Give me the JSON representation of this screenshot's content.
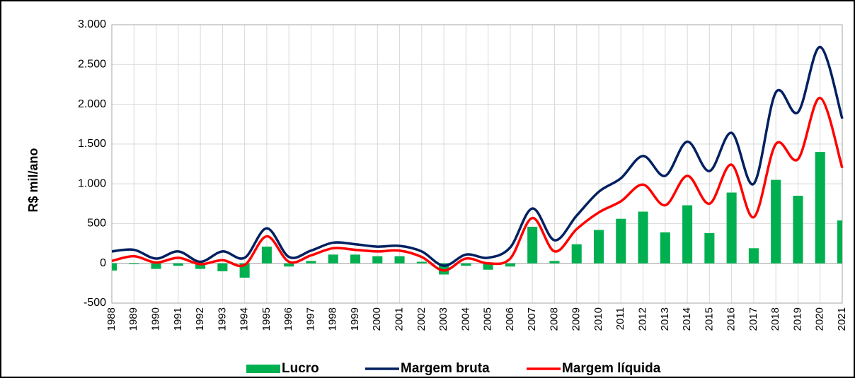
{
  "chart_data": {
    "type": "bar_line",
    "y_label": "R$ mil/ano",
    "categories": [
      "1988",
      "1989",
      "1990",
      "1991",
      "1992",
      "1993",
      "1994",
      "1995",
      "1996",
      "1997",
      "1998",
      "1999",
      "2000",
      "2001",
      "2002",
      "2003",
      "2004",
      "2005",
      "2006",
      "2007",
      "2008",
      "2009",
      "2010",
      "2011",
      "2012",
      "2013",
      "2014",
      "2015",
      "2016",
      "2017",
      "2018",
      "2019",
      "2020",
      "2021"
    ],
    "series": [
      {
        "name": "Lucro",
        "type": "bar",
        "color": "#00b050",
        "values": [
          -90,
          -10,
          -70,
          -30,
          -70,
          -100,
          -180,
          210,
          -40,
          30,
          110,
          110,
          90,
          90,
          20,
          -140,
          -30,
          -80,
          -40,
          460,
          30,
          240,
          420,
          560,
          650,
          390,
          730,
          380,
          890,
          190,
          1050,
          850,
          1400,
          540
        ]
      },
      {
        "name": "Margem bruta",
        "type": "line",
        "color": "#002060",
        "values": [
          150,
          170,
          60,
          150,
          20,
          150,
          70,
          440,
          80,
          160,
          260,
          240,
          210,
          220,
          150,
          -30,
          110,
          70,
          200,
          690,
          290,
          600,
          900,
          1070,
          1350,
          1100,
          1530,
          1160,
          1640,
          1000,
          2150,
          1900,
          2720,
          1820
        ]
      },
      {
        "name": "Margem líquida",
        "type": "line",
        "color": "#ff0000",
        "values": [
          30,
          90,
          10,
          70,
          -10,
          40,
          -20,
          340,
          20,
          100,
          190,
          170,
          150,
          160,
          80,
          -90,
          60,
          0,
          60,
          570,
          150,
          430,
          640,
          780,
          990,
          730,
          1100,
          750,
          1240,
          580,
          1500,
          1310,
          2080,
          1200
        ]
      }
    ],
    "ylim": [
      -500,
      3000
    ],
    "yticks": [
      {
        "value": 3000,
        "label": "3.000"
      },
      {
        "value": 2500,
        "label": "2.500"
      },
      {
        "value": 2000,
        "label": "2.000"
      },
      {
        "value": 1500,
        "label": "1.500"
      },
      {
        "value": 1000,
        "label": "1.000"
      },
      500,
      0,
      -500
    ],
    "grid": true,
    "legend": "bottom"
  }
}
